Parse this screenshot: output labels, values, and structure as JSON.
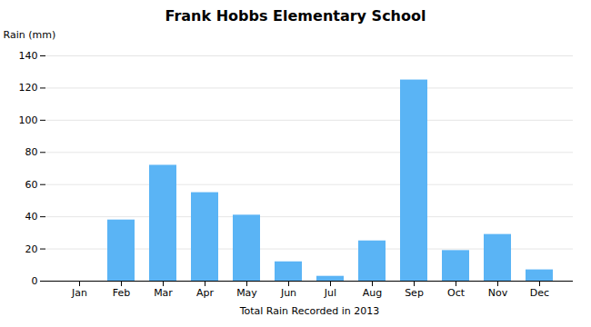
{
  "chart_data": {
    "type": "bar",
    "title": "Frank Hobbs Elementary School",
    "xlabel": "Total Rain Recorded in 2013",
    "ylabel": "Rain (mm)",
    "categories": [
      "Jan",
      "Feb",
      "Mar",
      "Apr",
      "May",
      "Jun",
      "Jul",
      "Aug",
      "Sep",
      "Oct",
      "Nov",
      "Dec"
    ],
    "values": [
      0,
      38,
      72,
      55,
      41,
      12,
      3,
      25,
      125,
      19,
      29,
      7
    ],
    "color": "#5ab4f5",
    "ylim": [
      0,
      140
    ],
    "yticks": [
      0,
      20,
      40,
      60,
      80,
      100,
      120,
      140
    ],
    "grid": true
  }
}
